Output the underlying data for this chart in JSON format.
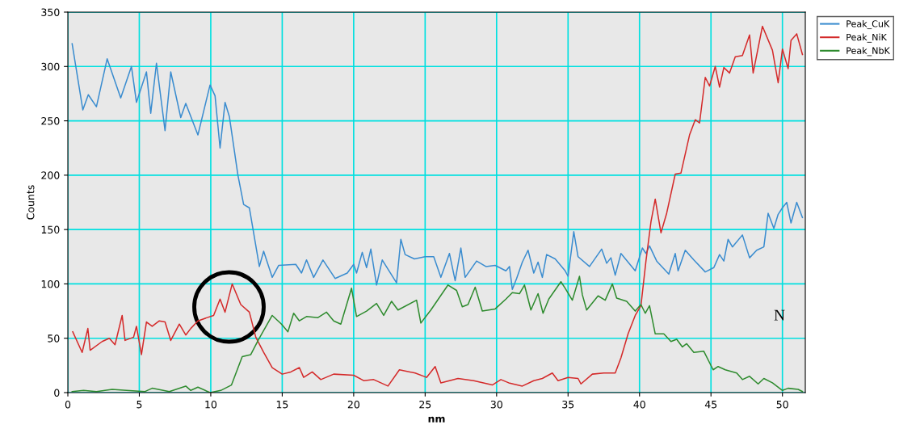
{
  "chart_data": {
    "type": "line",
    "xlabel": "nm",
    "ylabel": "Counts",
    "xlim": [
      0,
      51.6
    ],
    "ylim": [
      0,
      350
    ],
    "xticks": [
      0,
      5,
      10,
      15,
      20,
      25,
      30,
      35,
      40,
      45,
      50
    ],
    "yticks": [
      0,
      50,
      100,
      150,
      200,
      250,
      300,
      350
    ],
    "grid": true,
    "legend": "top right",
    "marker": "none",
    "line_style": "solid",
    "annotations": [
      "N"
    ],
    "series": [
      {
        "name": "Peak_CuK",
        "color": "#3a8ccf",
        "x": [
          0.3,
          1.05,
          1.43,
          2.0,
          2.75,
          3.7,
          4.45,
          4.8,
          5.5,
          5.8,
          6.2,
          6.8,
          7.2,
          7.9,
          8.25,
          9.1,
          9.95,
          10.3,
          10.65,
          11.0,
          11.3,
          11.9,
          12.3,
          12.7,
          13.4,
          13.7,
          14.3,
          14.75,
          15.95,
          16.35,
          16.7,
          17.2,
          17.85,
          18.7,
          19.55,
          20.0,
          20.2,
          20.6,
          20.9,
          21.2,
          21.6,
          22.0,
          23.0,
          23.3,
          23.6,
          24.25,
          25.0,
          25.6,
          26.1,
          26.7,
          27.1,
          27.5,
          27.8,
          28.6,
          29.25,
          29.9,
          30.65,
          30.9,
          31.1,
          31.4,
          31.8,
          32.2,
          32.6,
          32.9,
          33.2,
          33.5,
          34.1,
          34.8,
          35.0,
          35.4,
          35.7,
          36.5,
          37.35,
          37.7,
          38.0,
          38.3,
          38.7,
          39.7,
          40.2,
          40.45,
          40.7,
          41.2,
          42.05,
          42.5,
          42.7,
          43.2,
          43.8,
          44.6,
          45.2,
          45.6,
          45.9,
          46.2,
          46.5,
          47.2,
          47.7,
          48.2,
          48.7,
          49.0,
          49.4,
          49.7,
          50.0,
          50.3,
          50.6,
          51.0,
          51.4
        ],
        "values": [
          321,
          260,
          274,
          263,
          307,
          271,
          300,
          267,
          295,
          257,
          303,
          241,
          295,
          253,
          266,
          237,
          283,
          273,
          225,
          267,
          254,
          200,
          173,
          170,
          116,
          130,
          106,
          117,
          118,
          110,
          122,
          106,
          122,
          105,
          110,
          118,
          110,
          129,
          115,
          132,
          99,
          122,
          101,
          141,
          127,
          123,
          125,
          125,
          106,
          128,
          103,
          133,
          106,
          121,
          116,
          117,
          112,
          116,
          95,
          105,
          120,
          131,
          110,
          120,
          106,
          127,
          123,
          112,
          107,
          148,
          125,
          116,
          132,
          119,
          124,
          108,
          128,
          112,
          133,
          128,
          135,
          121,
          109,
          128,
          112,
          131,
          122,
          111,
          115,
          127,
          121,
          141,
          134,
          145,
          124,
          131,
          134,
          165,
          151,
          164,
          170,
          175,
          156,
          175,
          161
        ]
      },
      {
        "name": "Peak_NiK",
        "color": "#d42a2a",
        "x": [
          0.34,
          1.0,
          1.4,
          1.56,
          2.4,
          2.9,
          3.3,
          3.8,
          4.0,
          4.6,
          4.8,
          5.15,
          5.5,
          5.9,
          6.4,
          6.8,
          7.2,
          7.8,
          8.25,
          8.6,
          9.1,
          9.75,
          10.2,
          10.65,
          11.0,
          11.5,
          12.1,
          12.7,
          13.15,
          13.7,
          14.3,
          15.0,
          15.6,
          16.2,
          16.5,
          17.1,
          17.7,
          18.6,
          20.0,
          20.7,
          21.4,
          22.4,
          23.2,
          24.3,
          25.1,
          25.7,
          26.1,
          27.3,
          28.4,
          29.7,
          30.3,
          30.85,
          31.8,
          32.6,
          33.2,
          33.9,
          34.3,
          35.0,
          35.7,
          35.9,
          36.7,
          37.5,
          38.3,
          38.7,
          39.2,
          39.7,
          40.1,
          40.45,
          40.8,
          41.1,
          41.5,
          41.9,
          42.5,
          42.9,
          43.5,
          43.9,
          44.2,
          44.6,
          44.9,
          45.3,
          45.6,
          45.9,
          46.3,
          46.7,
          47.2,
          47.7,
          47.95,
          48.6,
          49.3,
          49.7,
          50.0,
          50.4,
          50.6,
          51.0,
          51.4
        ],
        "values": [
          56,
          37,
          59,
          39,
          47,
          50,
          44,
          71,
          48,
          51,
          61,
          35,
          65,
          61,
          66,
          65,
          48,
          63,
          53,
          59,
          66,
          69,
          71,
          86,
          74,
          100,
          81,
          74,
          51,
          37,
          23,
          17,
          19,
          23,
          14,
          19,
          12,
          17,
          16,
          11,
          12,
          6,
          21,
          18,
          14,
          24,
          9,
          13,
          11,
          7,
          12,
          9,
          6,
          11,
          13,
          18,
          11,
          14,
          13,
          8,
          17,
          18,
          18,
          32,
          54,
          71,
          80,
          121,
          157,
          178,
          147,
          165,
          201,
          202,
          237,
          251,
          248,
          290,
          282,
          300,
          281,
          299,
          294,
          309,
          310,
          329,
          294,
          337,
          315,
          285,
          316,
          298,
          324,
          330,
          311
        ]
      },
      {
        "name": "Peak_NbK",
        "color": "#2e8b2e",
        "x": [
          0.3,
          1.1,
          2.0,
          3.1,
          4.1,
          5.4,
          5.9,
          7.1,
          8.25,
          8.6,
          9.1,
          9.95,
          10.7,
          11.45,
          12.2,
          12.8,
          13.35,
          14.3,
          14.95,
          15.4,
          15.8,
          16.2,
          16.7,
          17.5,
          18.1,
          18.6,
          19.1,
          19.85,
          20.2,
          20.9,
          21.6,
          22.1,
          22.65,
          23.1,
          24.4,
          24.7,
          25.4,
          26.6,
          27.2,
          27.6,
          28.0,
          28.5,
          29.0,
          29.9,
          30.65,
          31.1,
          31.6,
          31.95,
          32.4,
          32.9,
          33.25,
          33.65,
          34.5,
          34.8,
          35.3,
          35.8,
          36.0,
          36.3,
          37.1,
          37.6,
          38.1,
          38.4,
          39.1,
          39.7,
          40.1,
          40.4,
          40.7,
          41.1,
          41.7,
          42.2,
          42.6,
          43.0,
          43.3,
          43.8,
          44.5,
          45.15,
          45.5,
          46.0,
          46.8,
          47.2,
          47.7,
          48.3,
          48.7,
          49.3,
          50.0,
          50.4,
          51.1,
          51.4
        ],
        "values": [
          1,
          2,
          1,
          3,
          2,
          1,
          4,
          1,
          6,
          2,
          5,
          0,
          2,
          7,
          33,
          35,
          49,
          71,
          63,
          56,
          73,
          66,
          70,
          69,
          74,
          66,
          63,
          96,
          70,
          75,
          82,
          71,
          84,
          76,
          85,
          64,
          76,
          99,
          94,
          79,
          81,
          97,
          75,
          77,
          86,
          92,
          91,
          99,
          76,
          91,
          73,
          86,
          102,
          96,
          85,
          107,
          90,
          76,
          89,
          85,
          100,
          87,
          84,
          75,
          81,
          73,
          80,
          54,
          54,
          47,
          49,
          42,
          45,
          37,
          38,
          21,
          24,
          21,
          18,
          12,
          15,
          8,
          13,
          9,
          2,
          4,
          3,
          1
        ]
      }
    ]
  }
}
